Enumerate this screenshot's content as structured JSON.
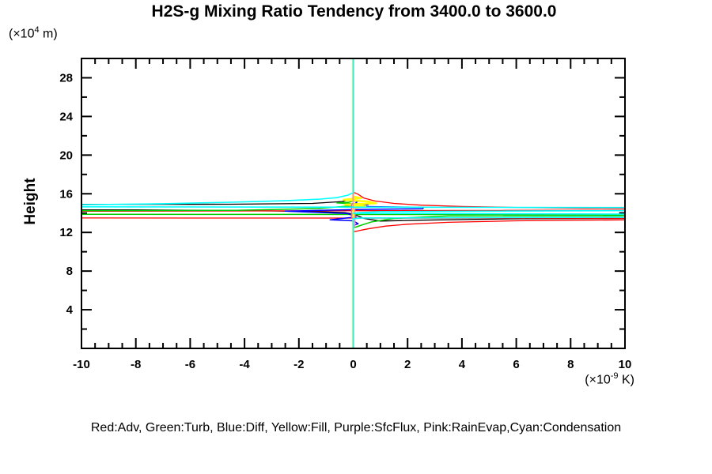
{
  "title": "H2S-g Mixing Ratio Tendency from 3400.0 to 3600.0",
  "legend": {
    "text": "Red:Adv, Green:Turb, Blue:Diff, Yellow:Fill, Purple:SfcFlux, Pink:RainEvap,Cyan:Condensation"
  },
  "y_axis": {
    "label": "Height",
    "unit_pre": "(×10",
    "unit_sup": "4",
    "unit_post": " m)",
    "tick_labels": [
      4,
      8,
      12,
      16,
      20,
      24,
      28
    ],
    "range": [
      0,
      30
    ],
    "minor_step": 2
  },
  "x_axis": {
    "unit_pre": "(×10",
    "unit_sup": "-9",
    "unit_post": " K)",
    "tick_labels": [
      -10,
      -8,
      -6,
      -4,
      -2,
      0,
      2,
      4,
      6,
      8,
      10
    ],
    "range": [
      -10,
      10
    ],
    "minor_step": 0.5
  },
  "chart_data": {
    "type": "line",
    "orientation": "profile (x = tendency value, y = height)",
    "title": "H2S-g Mixing Ratio Tendency from 3400.0 to 3600.0",
    "xlabel": "(x10^-9 K)",
    "ylabel": "Height (x10^4 m)",
    "xlim": [
      -10,
      10
    ],
    "ylim": [
      0,
      30
    ],
    "grid": false,
    "zero_line": {
      "color_hex": "#00ffff",
      "x": 0
    },
    "series": [
      {
        "name": "black",
        "label": "",
        "color_hex": "#000000",
        "stroke_width": 1.3,
        "points": [
          [
            0,
            29.95
          ],
          [
            0,
            15.55
          ],
          [
            -0.4,
            15.2
          ],
          [
            -1.5,
            15.0
          ],
          [
            -4.5,
            14.92
          ],
          [
            -30,
            14.8
          ],
          [
            -30,
            14.42
          ],
          [
            -8,
            14.33
          ],
          [
            -3,
            14.22
          ],
          [
            -1,
            14.12
          ],
          [
            -0.3,
            14.05
          ],
          [
            0,
            13.9
          ],
          [
            0.4,
            13.45
          ],
          [
            1.0,
            13.18
          ],
          [
            2.5,
            13.27
          ],
          [
            4.6,
            13.36
          ],
          [
            6.2,
            13.42
          ],
          [
            30,
            13.56
          ],
          [
            9.8,
            14.03
          ],
          [
            30,
            14.06
          ]
        ]
      },
      {
        "name": "Adv",
        "label": "Red:Adv",
        "color_hex": "#ff0000",
        "stroke_width": 1.3,
        "points": [
          [
            0,
            29.95
          ],
          [
            0,
            16.15
          ],
          [
            0.15,
            16.0
          ],
          [
            0.4,
            15.55
          ],
          [
            0.8,
            15.25
          ],
          [
            1.5,
            15.0
          ],
          [
            2.5,
            14.82
          ],
          [
            4,
            14.68
          ],
          [
            6,
            14.58
          ],
          [
            8.5,
            14.5
          ],
          [
            30,
            14.42
          ],
          [
            -30,
            14.08
          ],
          [
            -30,
            13.52
          ],
          [
            30,
            13.45
          ],
          [
            10,
            13.3
          ],
          [
            6,
            13.2
          ],
          [
            3.5,
            13.05
          ],
          [
            2,
            12.85
          ],
          [
            1.2,
            12.65
          ],
          [
            0.6,
            12.4
          ],
          [
            0.3,
            12.24
          ],
          [
            0.12,
            12.12
          ],
          [
            0,
            12.08
          ],
          [
            0,
            0.05
          ]
        ]
      },
      {
        "name": "Turb",
        "label": "Green:Turb",
        "color_hex": "#00cc00",
        "stroke_width": 1.5,
        "points": [
          [
            0,
            29.95
          ],
          [
            0,
            15.25
          ],
          [
            -0.15,
            15.12
          ],
          [
            -0.6,
            15.05
          ],
          [
            0.1,
            14.95
          ],
          [
            0.5,
            14.85
          ],
          [
            -0.3,
            14.7
          ],
          [
            -1.3,
            14.48
          ],
          [
            -4.3,
            14.28
          ],
          [
            -30,
            14.16
          ],
          [
            -30,
            13.9
          ],
          [
            30,
            13.82
          ],
          [
            3.5,
            13.7
          ],
          [
            1.5,
            13.45
          ],
          [
            0.7,
            13.1
          ],
          [
            0.3,
            12.75
          ],
          [
            0.1,
            12.55
          ],
          [
            0,
            12.5
          ],
          [
            0,
            0.05
          ]
        ]
      },
      {
        "name": "Diff",
        "label": "Blue:Diff",
        "color_hex": "#0000ff",
        "stroke_width": 1.5,
        "points": [
          [
            0,
            29.95
          ],
          [
            0,
            15.28
          ],
          [
            0.15,
            15.18
          ],
          [
            0.08,
            15.0
          ],
          [
            0.55,
            14.88
          ],
          [
            0.2,
            14.68
          ],
          [
            2.6,
            14.6
          ],
          [
            2.55,
            14.45
          ],
          [
            0.3,
            14.38
          ],
          [
            -1.2,
            14.28
          ],
          [
            -2.5,
            14.2
          ],
          [
            -0.2,
            13.95
          ],
          [
            0.1,
            13.6
          ],
          [
            -0.85,
            13.3
          ],
          [
            0,
            13.2
          ],
          [
            0.18,
            12.9
          ],
          [
            0,
            12.72
          ],
          [
            0,
            0.05
          ]
        ]
      },
      {
        "name": "Fill",
        "label": "Yellow:Fill",
        "color_hex": "#ffff00",
        "stroke_width": 2.5,
        "points": [
          [
            0,
            29.95
          ],
          [
            0,
            15.7
          ],
          [
            0.3,
            15.55
          ],
          [
            -0.35,
            15.38
          ],
          [
            0.55,
            15.2
          ],
          [
            0.85,
            15.02
          ],
          [
            -0.3,
            14.88
          ],
          [
            0.45,
            14.72
          ],
          [
            0.1,
            14.58
          ],
          [
            0,
            14.5
          ],
          [
            0,
            0.05
          ]
        ]
      },
      {
        "name": "SfcFlux",
        "label": "Purple:SfcFlux",
        "color_hex": "#cc66cc",
        "stroke_width": 1.5,
        "points": [
          [
            0,
            29.95
          ],
          [
            0,
            15.0
          ],
          [
            -0.06,
            14.88
          ],
          [
            -0.06,
            13.55
          ],
          [
            0,
            13.42
          ],
          [
            0,
            0.05
          ]
        ]
      },
      {
        "name": "RainEvap",
        "label": "Pink:RainEvap",
        "color_hex": "#ff88bb",
        "stroke_width": 1.4,
        "points": [
          [
            0,
            29.95
          ],
          [
            0,
            14.45
          ],
          [
            0.06,
            14.32
          ],
          [
            0.06,
            12.62
          ],
          [
            0,
            12.5
          ],
          [
            0,
            0.05
          ]
        ]
      },
      {
        "name": "Condensation",
        "label": "Cyan:Condensation",
        "color_hex": "#00ffff",
        "stroke_width": 1.6,
        "points": [
          [
            0,
            29.95
          ],
          [
            0,
            16.1
          ],
          [
            -0.2,
            15.85
          ],
          [
            -0.6,
            15.6
          ],
          [
            -1.2,
            15.45
          ],
          [
            -2.5,
            15.28
          ],
          [
            -4.5,
            15.12
          ],
          [
            -7,
            14.97
          ],
          [
            -10,
            14.86
          ],
          [
            -30,
            14.72
          ],
          [
            30,
            14.5
          ],
          [
            1,
            14.15
          ],
          [
            0.25,
            14.05
          ],
          [
            0,
            13.98
          ],
          [
            30,
            13.72
          ],
          [
            0.3,
            13.5
          ],
          [
            0,
            13.42
          ],
          [
            0,
            0.05
          ]
        ]
      }
    ]
  }
}
